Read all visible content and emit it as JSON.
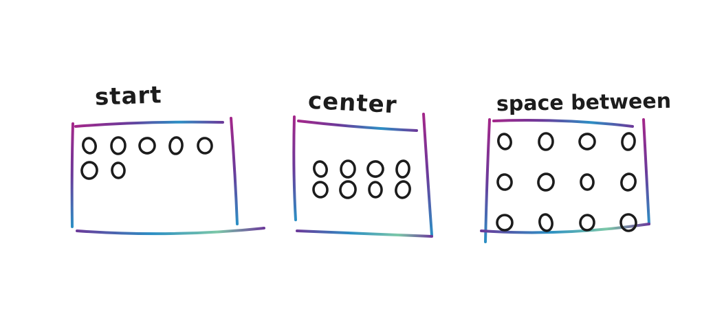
{
  "colors": {
    "ink": "#1c1c1c",
    "gradient_magenta": "#a3278a",
    "gradient_purple": "#6b3a9a",
    "gradient_blue": "#2c8fc4",
    "gradient_teal": "#7cc8a8"
  },
  "panels": [
    {
      "id": "start",
      "label": "start",
      "justify": "flex-start",
      "rows": [
        5,
        2
      ]
    },
    {
      "id": "center",
      "label": "center",
      "justify": "center",
      "rows": [
        4,
        4
      ]
    },
    {
      "id": "between",
      "label": "space between",
      "justify": "space-between",
      "rows": [
        4,
        4,
        4
      ]
    }
  ]
}
